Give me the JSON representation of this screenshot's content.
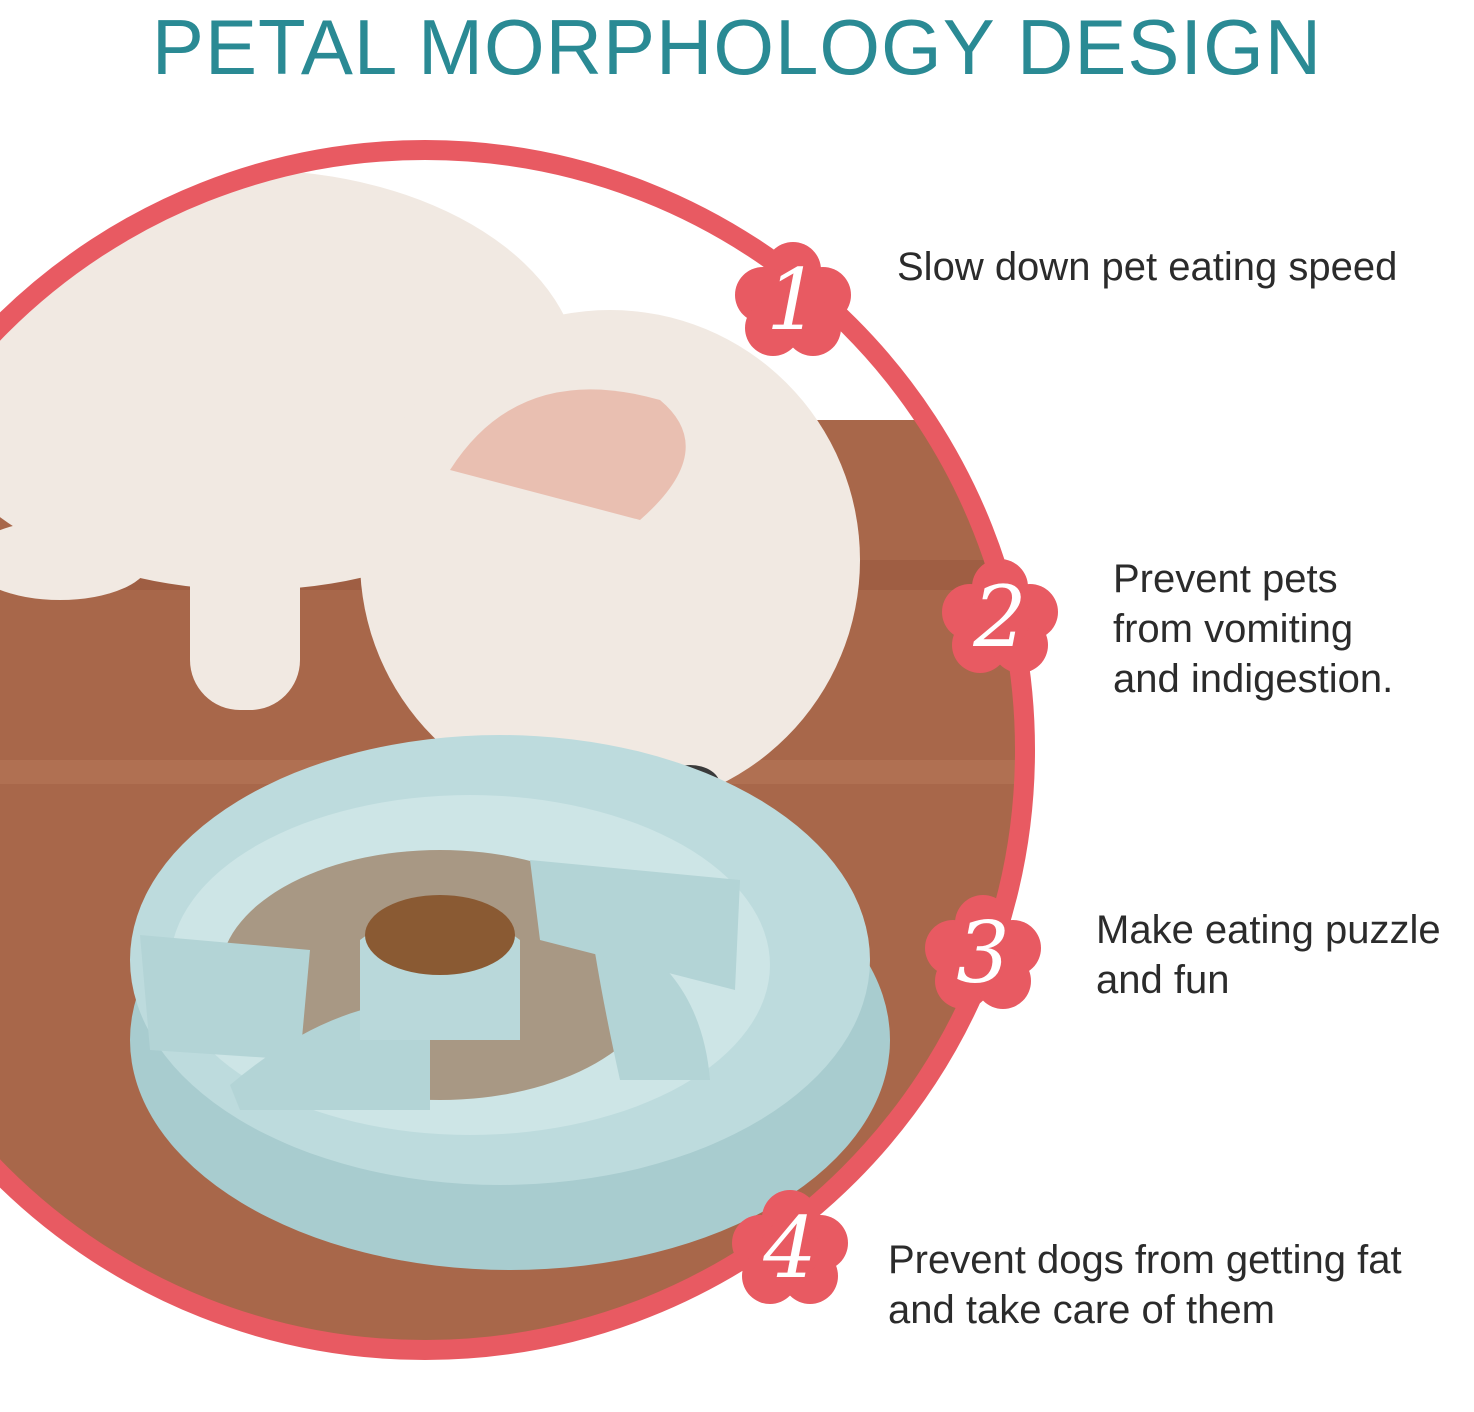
{
  "title": "PETAL MORPHOLOGY DESIGN",
  "colors": {
    "title": "#2a8a94",
    "accent": "#e85a62",
    "bowl": "#b9d8da",
    "floor": "#a8674a"
  },
  "features": [
    {
      "number": "1",
      "lines": [
        "Slow down pet eating speed"
      ]
    },
    {
      "number": "2",
      "lines": [
        "Prevent pets",
        "from vomiting",
        "and indigestion."
      ]
    },
    {
      "number": "3",
      "lines": [
        "Make eating puzzle",
        "and fun"
      ]
    },
    {
      "number": "4",
      "lines": [
        "Prevent dogs from getting fat",
        "and take care of them"
      ]
    }
  ]
}
